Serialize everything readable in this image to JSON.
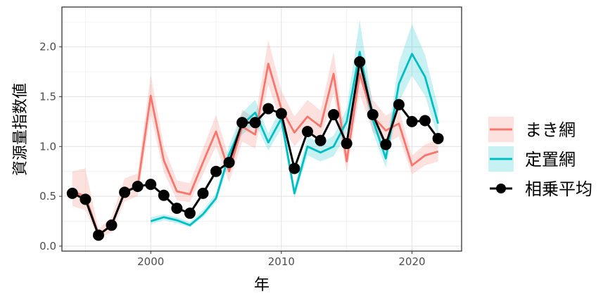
{
  "chart_data": {
    "type": "line",
    "xlabel": "年",
    "ylabel": "資源量指数値",
    "xlim": [
      1993.2,
      2023.8
    ],
    "ylim": [
      -0.05,
      2.4
    ],
    "xticks": [
      2000,
      2010,
      2020
    ],
    "yticks": [
      0.0,
      0.5,
      1.0,
      1.5,
      2.0
    ],
    "ytick_labels": [
      "0.0",
      "0.5",
      "1.0",
      "1.5",
      "2.0"
    ],
    "grid": true,
    "legend_position": "right",
    "series": [
      {
        "name": "まき網",
        "color": "#F8766D",
        "ribbon_color": "#F8766D",
        "x": [
          1994,
          1995,
          1996,
          1997,
          1998,
          1999,
          2000,
          2001,
          2002,
          2003,
          2004,
          2005,
          2006,
          2007,
          2008,
          2009,
          2010,
          2011,
          2012,
          2013,
          2014,
          2015,
          2016,
          2017,
          2018,
          2019,
          2020,
          2021,
          2022
        ],
        "y": [
          0.55,
          0.5,
          0.12,
          0.2,
          0.55,
          0.6,
          1.51,
          0.86,
          0.55,
          0.52,
          0.84,
          1.15,
          0.75,
          1.2,
          1.12,
          1.83,
          1.38,
          1.14,
          1.3,
          1.2,
          1.73,
          0.85,
          1.73,
          1.3,
          1.16,
          1.23,
          0.81,
          0.91,
          0.95
        ],
        "lower": [
          0.4,
          0.36,
          0.08,
          0.14,
          0.45,
          0.5,
          1.32,
          0.74,
          0.46,
          0.44,
          0.72,
          1.0,
          0.64,
          1.05,
          0.98,
          1.62,
          1.22,
          1.0,
          1.15,
          1.06,
          1.53,
          0.74,
          1.53,
          1.15,
          1.03,
          1.1,
          0.72,
          0.81,
          0.85
        ],
        "upper": [
          0.75,
          0.78,
          0.17,
          0.29,
          0.68,
          0.73,
          1.72,
          1.0,
          0.66,
          0.63,
          0.98,
          1.32,
          0.88,
          1.37,
          1.28,
          2.07,
          1.56,
          1.3,
          1.47,
          1.36,
          1.95,
          0.98,
          1.96,
          1.47,
          1.31,
          1.38,
          0.91,
          1.02,
          1.07
        ]
      },
      {
        "name": "定置網",
        "color": "#00BFC4",
        "ribbon_color": "#00BFC4",
        "x": [
          2000,
          2001,
          2002,
          2003,
          2004,
          2005,
          2006,
          2007,
          2008,
          2009,
          2010,
          2011,
          2012,
          2013,
          2014,
          2015,
          2016,
          2017,
          2018,
          2019,
          2020,
          2021,
          2022
        ],
        "y": [
          0.25,
          0.29,
          0.26,
          0.21,
          0.32,
          0.48,
          0.92,
          1.22,
          1.34,
          1.04,
          1.28,
          0.53,
          1.0,
          0.94,
          1.0,
          1.25,
          1.95,
          1.27,
          0.88,
          1.63,
          1.93,
          1.7,
          1.23
        ],
        "lower": [
          0.22,
          0.26,
          0.23,
          0.19,
          0.29,
          0.44,
          0.84,
          1.12,
          1.23,
          0.96,
          1.18,
          0.48,
          0.91,
          0.85,
          0.9,
          1.13,
          1.76,
          1.14,
          0.79,
          1.45,
          1.71,
          1.51,
          1.09
        ],
        "upper": [
          0.29,
          0.32,
          0.29,
          0.24,
          0.36,
          0.53,
          1.01,
          1.34,
          1.47,
          1.13,
          1.4,
          0.59,
          1.1,
          1.03,
          1.11,
          1.38,
          2.27,
          1.4,
          0.98,
          1.84,
          2.23,
          1.92,
          1.39
        ]
      },
      {
        "name": "相乗平均",
        "color": "#000000",
        "x": [
          1994,
          1995,
          1996,
          1997,
          1998,
          1999,
          2000,
          2001,
          2002,
          2003,
          2004,
          2005,
          2006,
          2007,
          2008,
          2009,
          2010,
          2011,
          2012,
          2013,
          2014,
          2015,
          2016,
          2017,
          2018,
          2019,
          2020,
          2021,
          2022
        ],
        "y": [
          0.53,
          0.47,
          0.11,
          0.21,
          0.54,
          0.6,
          0.62,
          0.51,
          0.38,
          0.33,
          0.53,
          0.75,
          0.84,
          1.24,
          1.24,
          1.38,
          1.33,
          0.78,
          1.15,
          1.06,
          1.32,
          1.03,
          1.85,
          1.32,
          1.02,
          1.42,
          1.25,
          1.26,
          1.08
        ]
      }
    ]
  }
}
